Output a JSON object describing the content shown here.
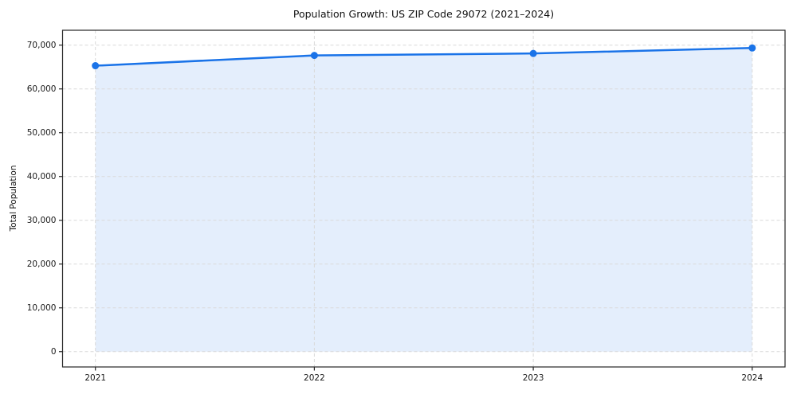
{
  "chart_data": {
    "type": "area",
    "title": "Population Growth: US ZIP Code 29072 (2021–2024)",
    "xlabel": "",
    "ylabel": "Total Population",
    "categories": [
      "2021",
      "2022",
      "2023",
      "2024"
    ],
    "x": [
      2021,
      2022,
      2023,
      2024
    ],
    "series": [
      {
        "name": "Total Population",
        "values": [
          65300,
          67650,
          68100,
          69350
        ]
      }
    ],
    "yticks": [
      0,
      10000,
      20000,
      30000,
      40000,
      50000,
      60000,
      70000
    ],
    "ytick_labels": [
      "0",
      "10,000",
      "20,000",
      "30,000",
      "40,000",
      "50,000",
      "60,000",
      "70,000"
    ],
    "xlim": [
      2020.85,
      2024.15
    ],
    "ylim": [
      -3500,
      73400
    ],
    "grid": "dashed-both-axes",
    "legend_position": "none",
    "colors": {
      "line": "#1a73e8",
      "marker": "#1a73e8",
      "fill": "#e4eefc",
      "grid": "#d9d9d9",
      "spine": "#262626",
      "tick_text": "#1a1a1a"
    }
  }
}
